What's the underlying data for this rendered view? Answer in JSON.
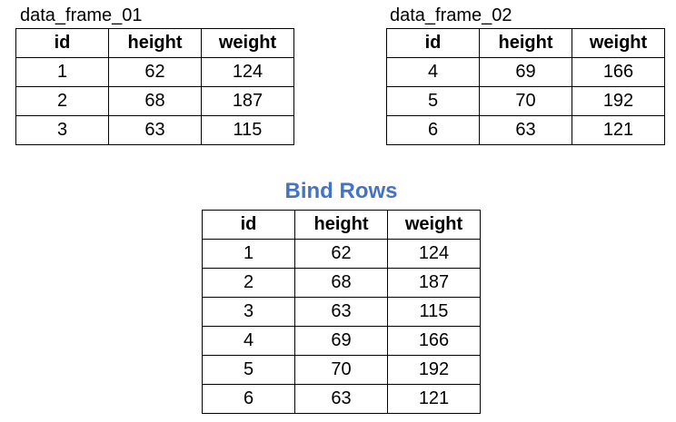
{
  "frame1": {
    "caption": "data_frame_01",
    "columns": [
      "id",
      "height",
      "weight"
    ],
    "rows": [
      [
        "1",
        "62",
        "124"
      ],
      [
        "2",
        "68",
        "187"
      ],
      [
        "3",
        "63",
        "115"
      ]
    ]
  },
  "frame2": {
    "caption": "data_frame_02",
    "columns": [
      "id",
      "height",
      "weight"
    ],
    "rows": [
      [
        "4",
        "69",
        "166"
      ],
      [
        "5",
        "70",
        "192"
      ],
      [
        "6",
        "63",
        "121"
      ]
    ]
  },
  "result": {
    "title": "Bind Rows",
    "title_color": "#4472c4",
    "columns": [
      "id",
      "height",
      "weight"
    ],
    "rows": [
      [
        "1",
        "62",
        "124"
      ],
      [
        "2",
        "68",
        "187"
      ],
      [
        "3",
        "63",
        "115"
      ],
      [
        "4",
        "69",
        "166"
      ],
      [
        "5",
        "70",
        "192"
      ],
      [
        "6",
        "63",
        "121"
      ]
    ]
  }
}
